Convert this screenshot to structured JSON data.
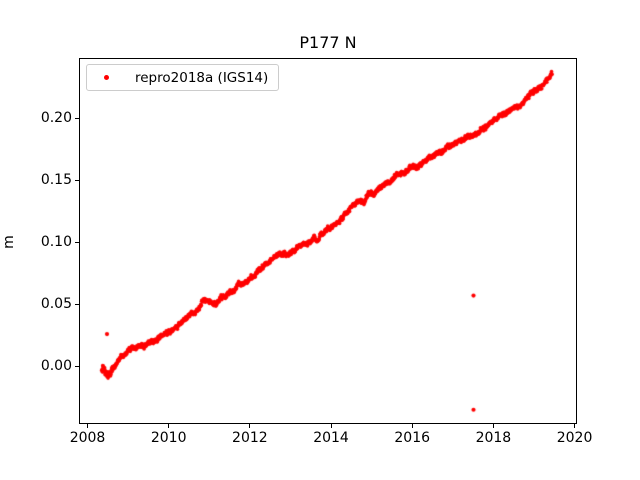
{
  "figure": {
    "background": "#ffffff",
    "axis_color": "#000000",
    "legend_border_color": "#cccccc"
  },
  "chart_data": {
    "type": "scatter",
    "title": "P177 N",
    "xlabel": "",
    "ylabel": "m",
    "grid": false,
    "xlim": [
      2007.79,
      2020.06
    ],
    "ylim": [
      -0.046,
      0.249
    ],
    "xticks": [
      {
        "v": 2008,
        "label": "2008"
      },
      {
        "v": 2010,
        "label": "2010"
      },
      {
        "v": 2012,
        "label": "2012"
      },
      {
        "v": 2014,
        "label": "2014"
      },
      {
        "v": 2016,
        "label": "2016"
      },
      {
        "v": 2018,
        "label": "2018"
      },
      {
        "v": 2020,
        "label": "2020"
      }
    ],
    "yticks": [
      {
        "v": 0.0,
        "label": "0.00"
      },
      {
        "v": 0.05,
        "label": "0.05"
      },
      {
        "v": 0.1,
        "label": "0.10"
      },
      {
        "v": 0.15,
        "label": "0.15"
      },
      {
        "v": 0.2,
        "label": "0.20"
      }
    ],
    "legend": {
      "position": "upper-left",
      "entries": [
        {
          "label": "repro2018a (IGS14)",
          "color": "#ff0000",
          "marker": "circle"
        }
      ]
    },
    "series": [
      {
        "name": "repro2018a (IGS14)",
        "color": "#ff0000",
        "marker": "circle",
        "marker_radius_px": 1.8,
        "x_start": 2008.35,
        "x_end": 2019.45,
        "sample_step_years": 0.006,
        "noise_amplitude_m": 0.0013,
        "anchors": [
          [
            2008.35,
            0.0
          ],
          [
            2008.42,
            -0.005
          ],
          [
            2008.5,
            -0.008
          ],
          [
            2008.62,
            -0.001
          ],
          [
            2008.8,
            0.006
          ],
          [
            2009.0,
            0.013
          ],
          [
            2009.35,
            0.0165
          ],
          [
            2009.7,
            0.022
          ],
          [
            2010.0,
            0.027
          ],
          [
            2010.3,
            0.035
          ],
          [
            2010.6,
            0.043
          ],
          [
            2010.88,
            0.055
          ],
          [
            2011.1,
            0.051
          ],
          [
            2011.4,
            0.057
          ],
          [
            2011.75,
            0.066
          ],
          [
            2012.1,
            0.073
          ],
          [
            2012.55,
            0.087
          ],
          [
            2012.8,
            0.0905
          ],
          [
            2013.1,
            0.0935
          ],
          [
            2013.3,
            0.097
          ],
          [
            2013.55,
            0.102
          ],
          [
            2013.9,
            0.11
          ],
          [
            2014.2,
            0.117
          ],
          [
            2014.55,
            0.13
          ],
          [
            2014.8,
            0.135
          ],
          [
            2015.1,
            0.141
          ],
          [
            2015.45,
            0.151
          ],
          [
            2015.8,
            0.157
          ],
          [
            2016.18,
            0.163
          ],
          [
            2016.67,
            0.174
          ],
          [
            2017.16,
            0.182
          ],
          [
            2017.73,
            0.191
          ],
          [
            2018.1,
            0.201
          ],
          [
            2018.4,
            0.206
          ],
          [
            2018.7,
            0.212
          ],
          [
            2019.0,
            0.222
          ],
          [
            2019.2,
            0.228
          ],
          [
            2019.45,
            0.236
          ]
        ],
        "outliers": [
          [
            2008.48,
            0.0265
          ],
          [
            2017.51,
            0.0575
          ],
          [
            2017.51,
            -0.0345
          ]
        ],
        "outlier_radius_px": 2.1
      }
    ]
  }
}
